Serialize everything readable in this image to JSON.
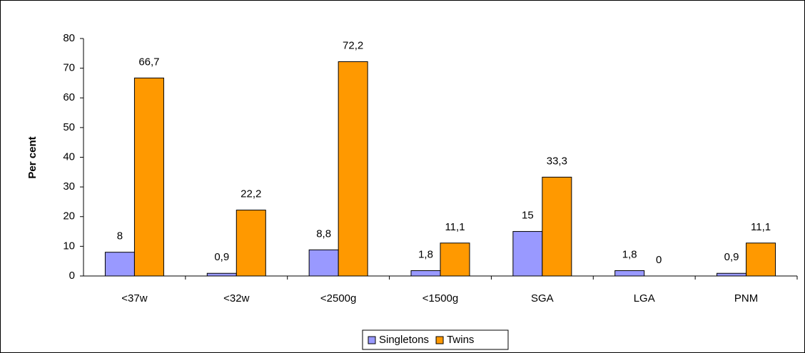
{
  "chart_data": {
    "type": "bar",
    "y_label": "Per cent",
    "categories": [
      "<37w",
      "<32w",
      "<2500g",
      "<1500g",
      "SGA",
      "LGA",
      "PNM"
    ],
    "series": [
      {
        "name": "Singletons",
        "color": "#9999ff",
        "values": [
          8,
          0.9,
          8.8,
          1.8,
          15,
          1.8,
          0.9
        ],
        "value_labels": [
          "8",
          "0,9",
          "8,8",
          "1,8",
          "15",
          "1,8",
          "0,9"
        ]
      },
      {
        "name": "Twins",
        "color": "#ff9900",
        "values": [
          66.7,
          22.2,
          72.2,
          11.1,
          33.3,
          0,
          11.1
        ],
        "value_labels": [
          "66,7",
          "22,2",
          "72,2",
          "11,1",
          "33,3",
          "0",
          "11,1"
        ]
      }
    ],
    "ylim": [
      0,
      80
    ],
    "yticks": [
      0,
      10,
      20,
      30,
      40,
      50,
      60,
      70,
      80
    ],
    "legend": "bottom"
  }
}
